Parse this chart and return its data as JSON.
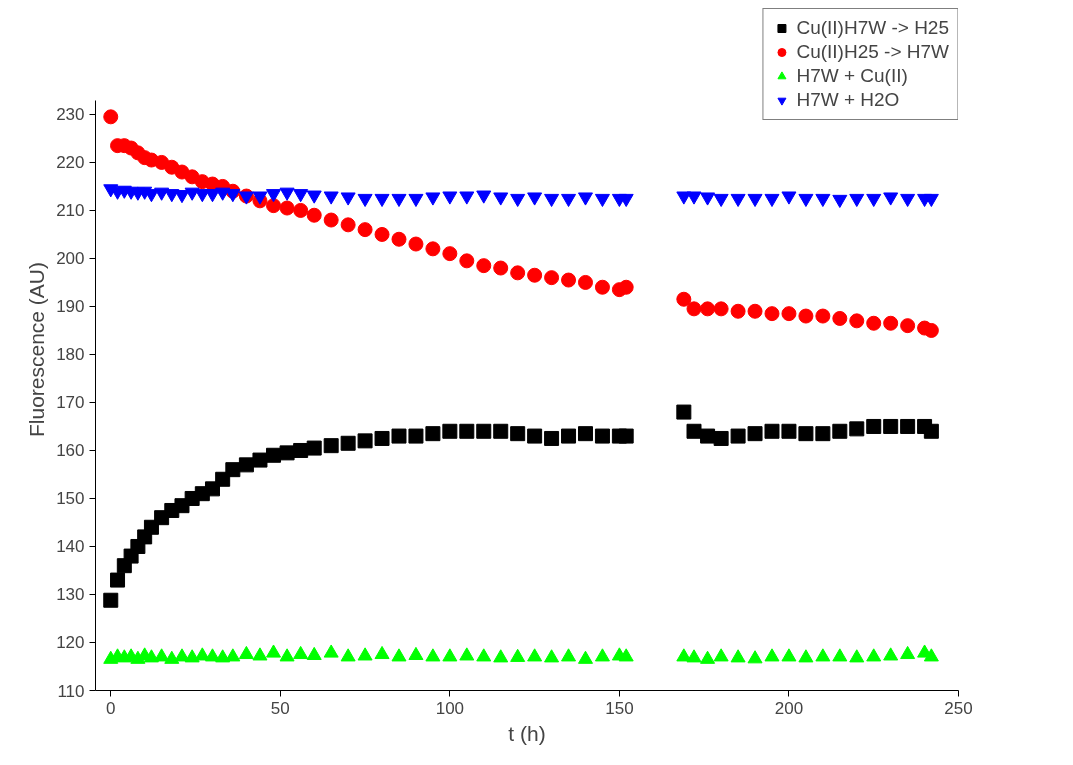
{
  "chart_data": {
    "type": "scatter",
    "xlabel": "t (h)",
    "ylabel": "Fluorescence (AU)",
    "x": [
      0,
      2,
      4,
      6,
      8,
      10,
      12,
      15,
      18,
      21,
      24,
      27,
      30,
      33,
      36,
      40,
      44,
      48,
      52,
      56,
      60,
      65,
      70,
      75,
      80,
      85,
      90,
      95,
      100,
      105,
      110,
      115,
      120,
      125,
      130,
      135,
      140,
      145,
      150,
      152,
      169,
      172,
      176,
      180,
      185,
      190,
      195,
      200,
      205,
      210,
      215,
      220,
      225,
      230,
      235,
      240,
      242
    ],
    "series": [
      {
        "name": "Cu(II)H7W -> H25",
        "color": "#000000",
        "marker": "square",
        "values": [
          128.8,
          133,
          136,
          138,
          140,
          142,
          144,
          146,
          147.5,
          148.5,
          150,
          151,
          152,
          154,
          156,
          157,
          158,
          159,
          159.5,
          160,
          160.5,
          161,
          161.5,
          162,
          162.5,
          163,
          163,
          163.5,
          164,
          164,
          164,
          164,
          163.5,
          163,
          162.5,
          163,
          163.5,
          163,
          163,
          163,
          168,
          164,
          163,
          162.5,
          163,
          163.5,
          164,
          164,
          163.5,
          163.5,
          164,
          164.5,
          165,
          165,
          165,
          165,
          164
        ]
      },
      {
        "name": "Cu(II)H25 -> H7W",
        "color": "#ff0000",
        "marker": "circle",
        "values": [
          229.5,
          223.5,
          223.5,
          223,
          222,
          221,
          220.5,
          220,
          219,
          218,
          217,
          216,
          215.5,
          215,
          214,
          213,
          212,
          211,
          210.5,
          210,
          209,
          208,
          207,
          206,
          205,
          204,
          203,
          202,
          201,
          199.5,
          198.5,
          198,
          197,
          196.5,
          196,
          195.5,
          195,
          194,
          193.5,
          194,
          191.5,
          189.5,
          189.5,
          189.5,
          189,
          189,
          188.5,
          188.5,
          188,
          188,
          187.5,
          187,
          186.5,
          186.5,
          186,
          185.5,
          185
        ]
      },
      {
        "name": "H7W + Cu(II)",
        "color": "#00ff00",
        "marker": "triangle",
        "values": [
          116.5,
          117,
          116.8,
          117,
          116.5,
          117.2,
          116.8,
          117,
          116.5,
          117,
          116.8,
          117.2,
          117,
          116.8,
          117,
          117.5,
          117.2,
          117.8,
          117,
          117.5,
          117.3,
          117.8,
          117,
          117.2,
          117.5,
          117,
          117.3,
          117,
          117,
          117.2,
          117,
          116.8,
          116.9,
          117,
          116.8,
          117,
          116.5,
          117,
          117.2,
          117,
          117,
          116.8,
          116.5,
          117,
          116.8,
          116.6,
          117,
          117,
          116.8,
          117,
          117,
          116.8,
          117,
          117.2,
          117.5,
          117.8,
          117
        ]
      },
      {
        "name": "H7W + H2O",
        "color": "#0000ff",
        "values": [
          214.5,
          214,
          214.2,
          214,
          213.8,
          214,
          213.5,
          213.8,
          213.5,
          213.3,
          213.8,
          213.5,
          213.5,
          213.8,
          213.5,
          213,
          213,
          213.5,
          213.8,
          213.5,
          213.2,
          213,
          212.8,
          212.5,
          212.5,
          212.5,
          212.5,
          212.8,
          213,
          213,
          213.2,
          212.8,
          212.5,
          212.8,
          212.5,
          212.5,
          212.8,
          212.5,
          212.5,
          212.5,
          213,
          213,
          212.8,
          212.5,
          212.5,
          212.5,
          212.5,
          213,
          212.5,
          212.5,
          212.3,
          212.5,
          212.5,
          212.8,
          212.5,
          212.5,
          212.5
        ]
      }
    ],
    "xlim": [
      -4.5,
      250
    ],
    "ylim": [
      110,
      233
    ],
    "xticks": [
      0,
      50,
      100,
      150,
      200,
      250
    ],
    "yticks": [
      110,
      120,
      130,
      140,
      150,
      160,
      170,
      180,
      190,
      200,
      210,
      220,
      230
    ],
    "grid": false,
    "legend": "top right"
  }
}
